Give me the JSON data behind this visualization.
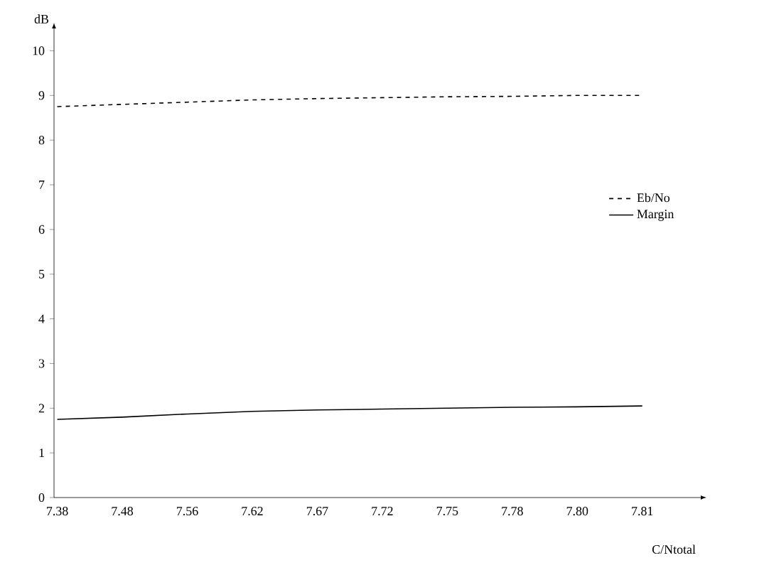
{
  "chart_data": {
    "type": "line",
    "xlabel": "C/Ntotal",
    "ylabel": "dB",
    "categories": [
      "7.38",
      "7.48",
      "7.56",
      "7.62",
      "7.67",
      "7.72",
      "7.75",
      "7.78",
      "7.80",
      "7.81"
    ],
    "series": [
      {
        "name": "Eb/No",
        "color": "#000000",
        "line_style": "dashed",
        "values": [
          8.75,
          8.8,
          8.85,
          8.9,
          8.93,
          8.95,
          8.97,
          8.98,
          9.0,
          9.0
        ]
      },
      {
        "name": "Margin",
        "color": "#000000",
        "line_style": "solid",
        "values": [
          1.75,
          1.8,
          1.87,
          1.93,
          1.96,
          1.98,
          2.0,
          2.02,
          2.03,
          2.05
        ]
      }
    ],
    "ylim": [
      0,
      10.5
    ],
    "yticks": [
      0,
      1,
      2,
      3,
      4,
      5,
      6,
      7,
      8,
      9,
      10
    ],
    "legend": "right",
    "marker": "none",
    "grid": false
  }
}
